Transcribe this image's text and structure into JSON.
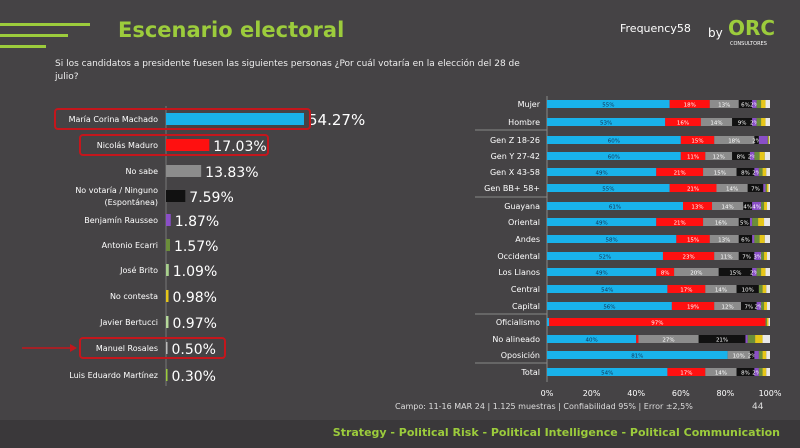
{
  "header": {
    "title": "Escenario electoral",
    "question": "Si los candidatos a presidente fuesen las siguientes personas ¿Por cuál votaría en la elección del 28 de julio?",
    "brand": "Frequency58",
    "by": "by",
    "partner": "ORC",
    "partner_sub": "CONSULTORES"
  },
  "colors": {
    "machado": "#19b2ea",
    "maduro": "#ff1010",
    "nosabe": "#8c8c8c",
    "novotaria": "#111111",
    "rausseo": "#8a4fc7",
    "ecarri": "#6b8e3a",
    "brito": "#a8d08d",
    "nocontesta": "#e6c619",
    "bertucci": "#b5d89a",
    "rosales": "#bbbbbb",
    "martinez": "#9ccc3c",
    "highlight": "#c4161c",
    "accent": "#9ccc3c"
  },
  "chart_data": [
    {
      "type": "bar",
      "orientation": "horizontal",
      "categories": [
        "María Corina Machado",
        "Nicolás Maduro",
        "No sabe",
        "No votaría / Ninguno (Espontánea)",
        "Benjamín Rausseo",
        "Antonio Ecarri",
        "José Brito",
        "No contesta",
        "Javier Bertucci",
        "Manuel Rosales",
        "Luis Eduardo Martínez"
      ],
      "values": [
        54.27,
        17.03,
        13.83,
        7.59,
        1.87,
        1.57,
        1.09,
        0.98,
        0.97,
        0.5,
        0.3
      ],
      "labels": [
        "54.27%",
        "17.03%",
        "13.83%",
        "7.59%",
        "1.87%",
        "1.57%",
        "1.09%",
        "0.98%",
        "0.97%",
        "0.50%",
        "0.30%"
      ],
      "highlighted": [
        "María Corina Machado",
        "Nicolás Maduro",
        "Manuel Rosales"
      ]
    },
    {
      "type": "bar",
      "stacked": "100%",
      "orientation": "horizontal",
      "categories": [
        "Mujer",
        "Hombre",
        "Gen Z 18-26",
        "Gen Y 27-42",
        "Gen X 43-58",
        "Gen BB+ 58+",
        "Guayana",
        "Oriental",
        "Andes",
        "Occidental",
        "Los Llanos",
        "Central",
        "Capital",
        "Oficialismo",
        "No alineado",
        "Oposición",
        "Total"
      ],
      "series": [
        {
          "key": "machado",
          "values": [
            55,
            53,
            60,
            60,
            49,
            55,
            61,
            49,
            58,
            52,
            49,
            54,
            56,
            1,
            40,
            81,
            54
          ]
        },
        {
          "key": "maduro",
          "values": [
            18,
            16,
            15,
            11,
            21,
            21,
            13,
            21,
            15,
            23,
            8,
            17,
            19,
            97,
            1,
            0,
            17
          ]
        },
        {
          "key": "nosabe",
          "values": [
            13,
            14,
            18,
            12,
            15,
            14,
            14,
            16,
            13,
            11,
            20,
            14,
            12,
            0,
            27,
            10,
            14
          ]
        },
        {
          "key": "novotaria",
          "values": [
            6,
            9,
            2,
            8,
            8,
            7,
            4,
            5,
            6,
            7,
            15,
            10,
            7,
            0,
            21,
            2,
            8
          ]
        },
        {
          "key": "rausseo",
          "values": [
            2,
            2,
            4,
            2,
            2,
            1,
            4,
            1,
            1,
            3,
            2,
            0,
            2,
            0,
            1,
            2,
            2
          ]
        }
      ],
      "xticks": [
        "0%",
        "20%",
        "40%",
        "60%",
        "80%",
        "100%"
      ],
      "xlim": [
        0,
        100
      ]
    }
  ],
  "footer": {
    "note": "Campo: 11-16 MAR 24 | 1.125 muestras | Confiabilidad 95% | Error ±2,5%",
    "page": "44",
    "tagline": "Strategy - Political Risk - Political Intelligence - Political Communication"
  }
}
